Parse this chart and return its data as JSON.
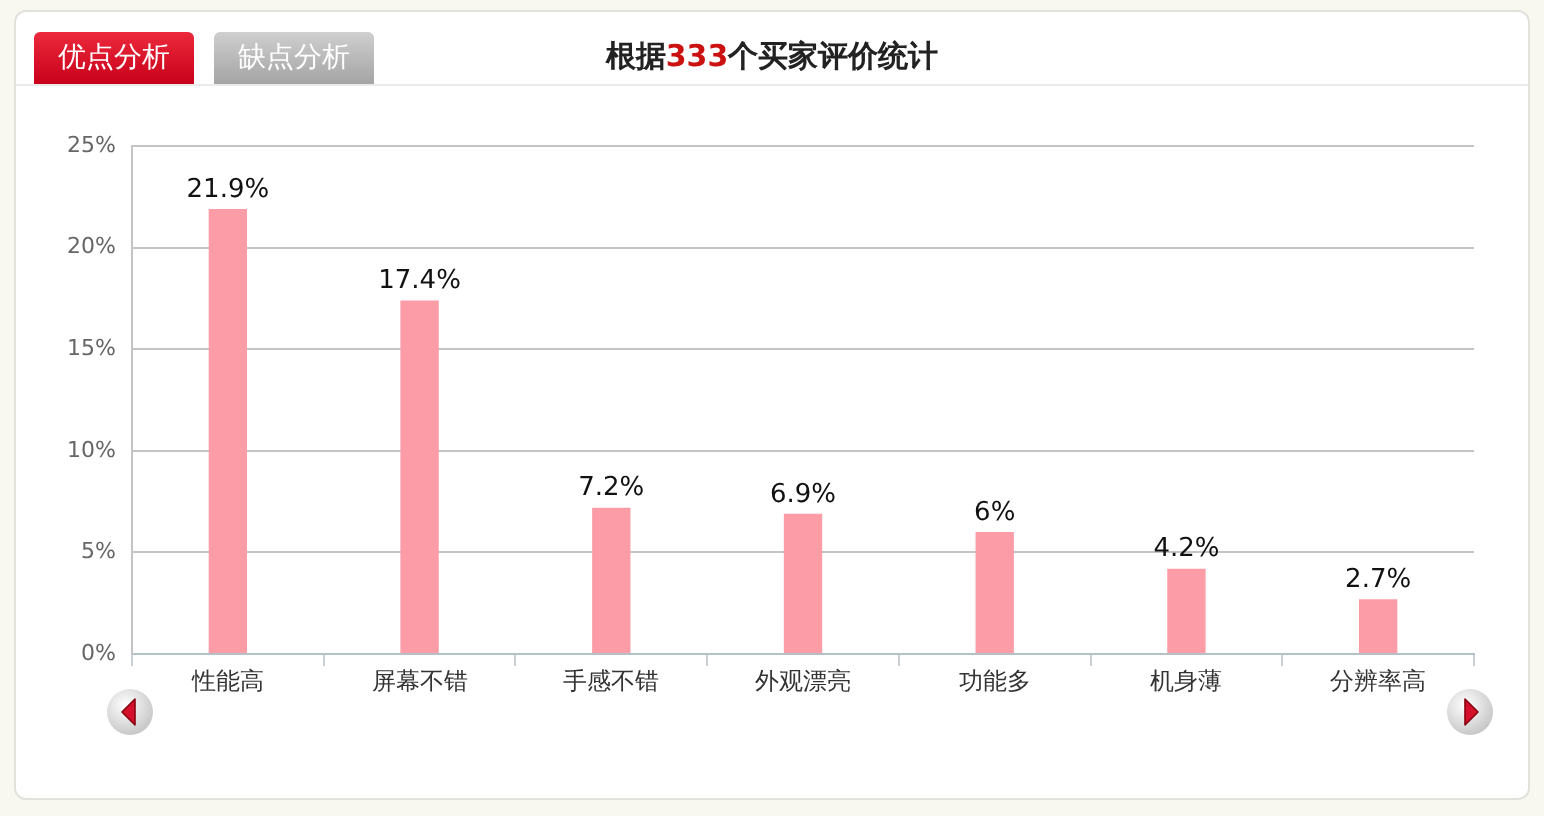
{
  "chart_data": {
    "type": "bar",
    "title": "根据333个买家评价统计",
    "annotations": [
      "优点分析",
      "缺点分析"
    ],
    "categories": [
      "性能高",
      "屏幕不错",
      "手感不错",
      "外观漂亮",
      "功能多",
      "机身薄",
      "分辨率高"
    ],
    "values": [
      21.9,
      17.4,
      7.2,
      6.9,
      6,
      4.2,
      2.7
    ],
    "value_labels": [
      "21.9%",
      "17.4%",
      "7.2%",
      "6.9%",
      "6%",
      "4.2%",
      "2.7%"
    ],
    "color": "#fb9ca7",
    "ylim": [
      0,
      25
    ],
    "yticks": [
      {
        "value": 0,
        "label": "0%"
      },
      {
        "value": 5,
        "label": "5%"
      },
      {
        "value": 10,
        "label": "10%"
      },
      {
        "value": 15,
        "label": "15%"
      },
      {
        "value": 20,
        "label": "20%"
      },
      {
        "value": 25,
        "label": "25%"
      }
    ],
    "grid": "y"
  }
}
